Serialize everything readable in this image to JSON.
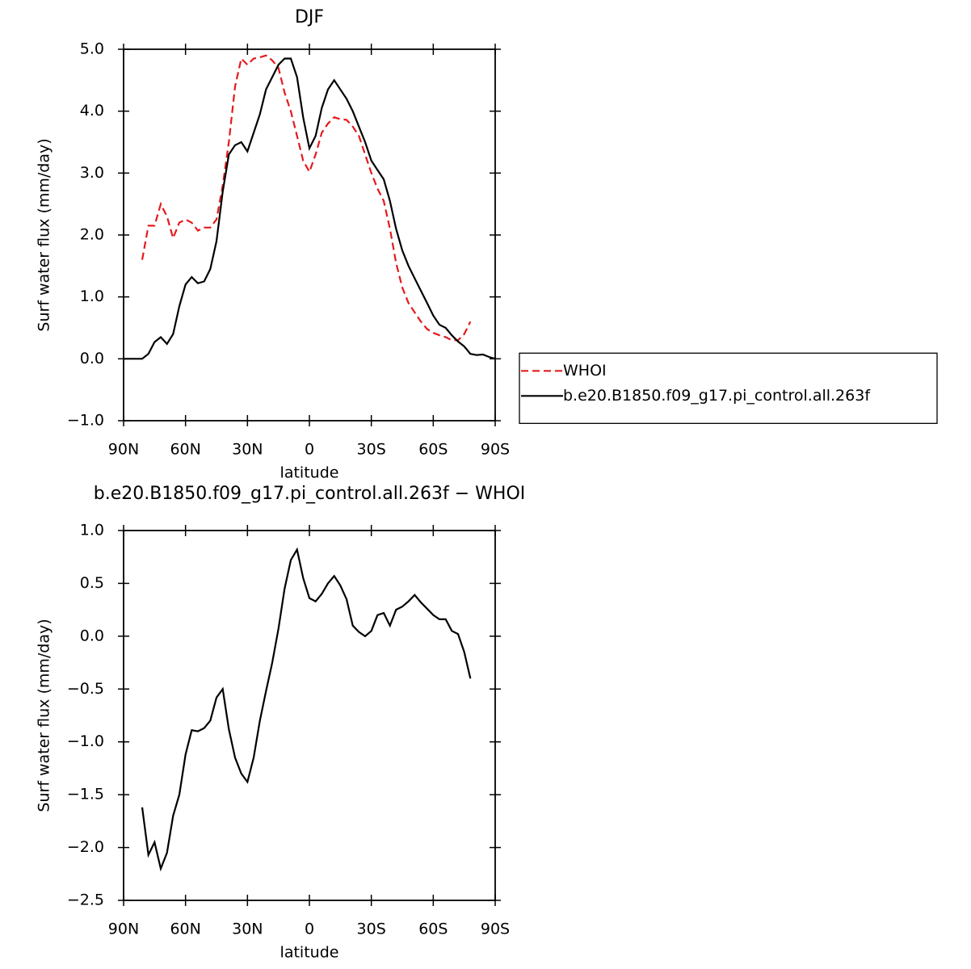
{
  "chart_data": [
    {
      "type": "line",
      "title": "DJF",
      "xlabel": "latitude",
      "ylabel": "Surf water flux (mm/day)",
      "x": [
        90,
        87,
        84,
        81,
        78,
        75,
        72,
        69,
        66,
        63,
        60,
        57,
        54,
        51,
        48,
        45,
        42,
        39,
        36,
        33,
        30,
        27,
        24,
        21,
        18,
        15,
        12,
        9,
        6,
        3,
        0,
        -3,
        -6,
        -9,
        -12,
        -15,
        -18,
        -21,
        -24,
        -27,
        -30,
        -33,
        -36,
        -39,
        -42,
        -45,
        -48,
        -51,
        -54,
        -57,
        -60,
        -63,
        -66,
        -69,
        -72,
        -75,
        -78,
        -81,
        -84,
        -87,
        -90
      ],
      "series": [
        {
          "name": "WHOI",
          "color": "#e41a1c",
          "dash": "dashed",
          "values": [
            null,
            null,
            null,
            1.6,
            2.15,
            2.15,
            2.5,
            2.3,
            1.95,
            2.2,
            2.25,
            2.2,
            2.07,
            2.12,
            2.12,
            2.25,
            2.8,
            3.5,
            4.4,
            4.85,
            4.75,
            4.85,
            4.87,
            4.9,
            4.82,
            4.7,
            4.3,
            4.0,
            3.6,
            3.2,
            3.02,
            3.3,
            3.65,
            3.8,
            3.9,
            3.87,
            3.86,
            3.75,
            3.6,
            3.3,
            3.0,
            2.75,
            2.55,
            2.1,
            1.55,
            1.15,
            0.9,
            0.75,
            0.6,
            0.48,
            0.42,
            0.38,
            0.35,
            0.3,
            0.3,
            0.4,
            0.6,
            null,
            null,
            null,
            null
          ]
        },
        {
          "name": "b.e20.B1850.f09_g17.pi_control.all.263f",
          "color": "#000000",
          "dash": "solid",
          "values": [
            0.0,
            0.0,
            0.0,
            0.0,
            0.08,
            0.27,
            0.35,
            0.24,
            0.4,
            0.85,
            1.2,
            1.32,
            1.22,
            1.25,
            1.45,
            1.9,
            2.7,
            3.3,
            3.45,
            3.5,
            3.35,
            3.65,
            3.95,
            4.35,
            4.55,
            4.75,
            4.85,
            4.85,
            4.55,
            3.9,
            3.4,
            3.6,
            4.05,
            4.35,
            4.5,
            4.35,
            4.2,
            4.0,
            3.75,
            3.5,
            3.2,
            3.05,
            2.9,
            2.55,
            2.1,
            1.75,
            1.5,
            1.3,
            1.1,
            0.9,
            0.7,
            0.55,
            0.5,
            0.38,
            0.28,
            0.2,
            0.08,
            0.06,
            0.07,
            0.03,
            0.0
          ]
        }
      ],
      "xlim": [
        90,
        -90
      ],
      "xticks": [
        {
          "value": 90,
          "label": "90N"
        },
        {
          "value": 60,
          "label": "60N"
        },
        {
          "value": 30,
          "label": "30N"
        },
        0,
        {
          "value": -30,
          "label": "30S"
        },
        {
          "value": -60,
          "label": "60S"
        },
        {
          "value": -90,
          "label": "90S"
        }
      ],
      "ylim": [
        -1,
        5
      ],
      "yticks": [
        {
          "value": -1,
          "label": "−1.0"
        },
        {
          "value": 0,
          "label": "0.0"
        },
        {
          "value": 1,
          "label": "1.0"
        },
        {
          "value": 2,
          "label": "2.0"
        },
        {
          "value": 3,
          "label": "3.0"
        },
        {
          "value": 4,
          "label": "4.0"
        },
        {
          "value": 5,
          "label": "5.0"
        }
      ],
      "legend": "outside-right"
    },
    {
      "type": "line",
      "title": "b.e20.B1850.f09_g17.pi_control.all.263f − WHOI",
      "xlabel": "latitude",
      "ylabel": "Surf water flux (mm/day)",
      "x": [
        81,
        78,
        75,
        72,
        69,
        66,
        63,
        60,
        57,
        54,
        51,
        48,
        45,
        42,
        39,
        36,
        33,
        30,
        27,
        24,
        21,
        18,
        15,
        12,
        9,
        6,
        3,
        0,
        -3,
        -6,
        -9,
        -12,
        -15,
        -18,
        -21,
        -24,
        -27,
        -30,
        -33,
        -36,
        -39,
        -42,
        -45,
        -48,
        -51,
        -54,
        -57,
        -60,
        -63,
        -66,
        -69,
        -72,
        -75,
        -78
      ],
      "series": [
        {
          "color": "#000000",
          "dash": "solid",
          "values": [
            -1.62,
            -2.07,
            -1.95,
            -2.2,
            -2.05,
            -1.7,
            -1.5,
            -1.12,
            -0.89,
            -0.9,
            -0.87,
            -0.8,
            -0.58,
            -0.5,
            -0.88,
            -1.15,
            -1.3,
            -1.38,
            -1.15,
            -0.8,
            -0.52,
            -0.25,
            0.07,
            0.45,
            0.72,
            0.82,
            0.55,
            0.36,
            0.33,
            0.4,
            0.5,
            0.57,
            0.48,
            0.35,
            0.1,
            0.04,
            0.0,
            0.05,
            0.2,
            0.22,
            0.1,
            0.25,
            0.28,
            0.33,
            0.39,
            0.32,
            0.26,
            0.2,
            0.16,
            0.16,
            0.05,
            0.02,
            -0.15,
            -0.4
          ]
        }
      ],
      "xlim": [
        90,
        -90
      ],
      "xticks": [
        {
          "value": 90,
          "label": "90N"
        },
        {
          "value": 60,
          "label": "60N"
        },
        {
          "value": 30,
          "label": "30N"
        },
        0,
        {
          "value": -30,
          "label": "30S"
        },
        {
          "value": -60,
          "label": "60S"
        },
        {
          "value": -90,
          "label": "90S"
        }
      ],
      "ylim": [
        -2.5,
        1
      ],
      "yticks": [
        {
          "value": -2.5,
          "label": "−2.5"
        },
        {
          "value": -2,
          "label": "−2.0"
        },
        {
          "value": -1.5,
          "label": "−1.5"
        },
        {
          "value": -1,
          "label": "−1.0"
        },
        {
          "value": -0.5,
          "label": "−0.5"
        },
        {
          "value": 0,
          "label": "0.0"
        },
        {
          "value": 0.5,
          "label": "0.5"
        },
        {
          "value": 1,
          "label": "1.0"
        }
      ]
    }
  ]
}
